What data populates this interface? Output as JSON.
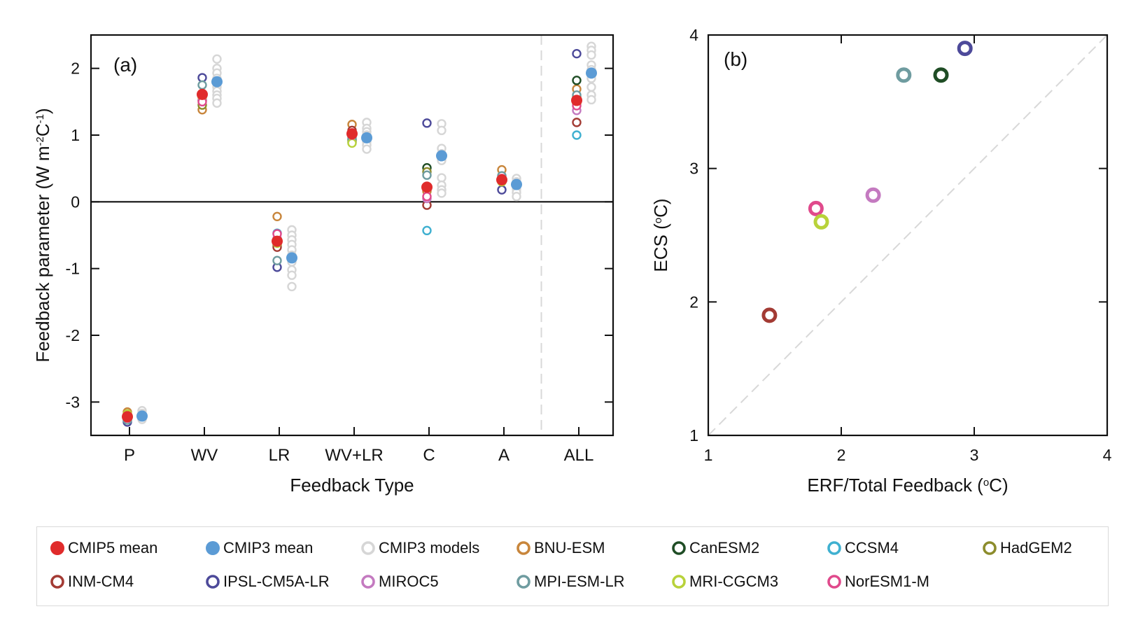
{
  "chart_data": [
    {
      "panel_label": "(a)",
      "type": "scatter",
      "xlabel": "Feedback Type",
      "ylabel": "Feedback parameter (W m⁻²C⁻¹)",
      "ylabel_parts": [
        "Feedback parameter (W m",
        "-2",
        "C",
        "-1",
        ")"
      ],
      "categories": [
        "P",
        "WV",
        "LR",
        "WV+LR",
        "C",
        "A",
        "ALL"
      ],
      "ylim": [
        -3.5,
        2.5
      ],
      "yticks": [
        -3,
        -2,
        -1,
        0,
        1,
        2
      ],
      "zero_line": true,
      "separator_between": [
        "A",
        "ALL"
      ],
      "series": [
        {
          "name": "CMIP3 models",
          "color": "#d6d6d6",
          "style": "open",
          "offset": "right",
          "values": [
            [
              -3.13,
              -3.17,
              -3.2,
              -3.23,
              -3.26
            ],
            [
              2.14,
              2.0,
              1.93,
              1.85,
              1.79,
              1.72,
              1.66,
              1.6,
              1.55,
              1.48
            ],
            [
              -0.42,
              -0.5,
              -0.57,
              -0.64,
              -0.72,
              -0.8,
              -0.9,
              -1.02,
              -1.1,
              -1.27
            ],
            [
              1.19,
              1.1,
              1.05,
              1.0,
              0.95,
              0.9,
              0.85,
              0.79
            ],
            [
              1.17,
              1.07,
              0.8,
              0.72,
              0.62,
              0.36,
              0.25,
              0.18,
              0.13
            ],
            [
              0.35,
              0.3,
              0.24,
              0.19,
              0.14,
              0.08
            ],
            [
              2.33,
              2.27,
              2.2,
              2.05,
              1.98,
              1.85,
              1.72,
              1.6,
              1.53
            ]
          ]
        },
        {
          "name": "BNU-ESM",
          "color": "#c8863c",
          "style": "open",
          "offset": "left",
          "values": [
            -3.15,
            1.38,
            -0.22,
            1.16,
            0.16,
            0.48,
            1.69
          ]
        },
        {
          "name": "CanESM2",
          "color": "#1f4d25",
          "style": "open",
          "offset": "left",
          "values": [
            -3.25,
            1.52,
            -0.6,
            0.93,
            0.51,
            0.36,
            1.82
          ]
        },
        {
          "name": "CCSM4",
          "color": "#3fb0d0",
          "style": "open",
          "offset": "left",
          "values": [
            -3.28,
            1.62,
            -0.47,
            0.89,
            -0.43,
            0.34,
            1.0
          ]
        },
        {
          "name": "HadGEM2",
          "color": "#8c8c2c",
          "style": "open",
          "offset": "left",
          "values": [
            -3.2,
            1.45,
            -0.65,
            0.9,
            0.45,
            0.33,
            1.57
          ]
        },
        {
          "name": "INM-CM4",
          "color": "#a33b34",
          "style": "open",
          "offset": "left",
          "values": [
            -3.22,
            1.6,
            -0.68,
            1.07,
            -0.05,
            0.32,
            1.19
          ]
        },
        {
          "name": "IPSL-CM5A-LR",
          "color": "#4d4a9a",
          "style": "open",
          "offset": "left",
          "values": [
            -3.3,
            1.86,
            -0.98,
            1.02,
            1.18,
            0.18,
            2.22
          ]
        },
        {
          "name": "MIROC5",
          "color": "#c47ac0",
          "style": "open",
          "offset": "left",
          "values": [
            -3.23,
            1.55,
            -0.55,
            0.97,
            0.05,
            0.37,
            1.37
          ]
        },
        {
          "name": "MPI-ESM-LR",
          "color": "#6f9ca0",
          "style": "open",
          "offset": "left",
          "values": [
            -3.27,
            1.75,
            -0.88,
            0.95,
            0.4,
            0.39,
            1.6
          ]
        },
        {
          "name": "MRI-CGCM3",
          "color": "#b8d23a",
          "style": "open",
          "offset": "left",
          "values": [
            -3.18,
            1.57,
            -0.62,
            0.88,
            0.22,
            0.3,
            1.47
          ]
        },
        {
          "name": "NorESM1-M",
          "color": "#e04a8c",
          "style": "open",
          "offset": "left",
          "values": [
            -3.24,
            1.5,
            -0.48,
            1.0,
            0.08,
            0.35,
            1.44
          ]
        },
        {
          "name": "CMIP5 mean",
          "color": "#e02b2b",
          "style": "filled",
          "offset": "left",
          "values": [
            -3.22,
            1.61,
            -0.59,
            1.02,
            0.22,
            0.33,
            1.52
          ]
        },
        {
          "name": "CMIP3 mean",
          "color": "#5b9bd5",
          "style": "filled",
          "offset": "right",
          "values": [
            -3.21,
            1.8,
            -0.84,
            0.96,
            0.69,
            0.26,
            1.93
          ]
        }
      ]
    },
    {
      "panel_label": "(b)",
      "type": "scatter",
      "xlabel": "ERF/Total Feedback (°C)",
      "xlabel_parts": [
        "ERF/Total Feedback (",
        "o",
        "C)"
      ],
      "ylabel": "ECS (°C)",
      "ylabel_parts": [
        "ECS (",
        "o",
        "C)"
      ],
      "xlim": [
        1,
        4
      ],
      "ylim": [
        1,
        4
      ],
      "xticks": [
        1,
        2,
        3,
        4
      ],
      "yticks": [
        1,
        2,
        3,
        4
      ],
      "one_to_one_line": true,
      "points": [
        {
          "name": "INM-CM4",
          "x": 1.46,
          "y": 1.9,
          "color": "#a33b34"
        },
        {
          "name": "NorESM1-M",
          "x": 1.81,
          "y": 2.7,
          "color": "#e04a8c"
        },
        {
          "name": "MRI-CGCM3",
          "x": 1.85,
          "y": 2.6,
          "color": "#b8d23a"
        },
        {
          "name": "MIROC5",
          "x": 2.24,
          "y": 2.8,
          "color": "#c47ac0"
        },
        {
          "name": "MPI-ESM-LR",
          "x": 2.47,
          "y": 3.7,
          "color": "#6f9ca0"
        },
        {
          "name": "CanESM2",
          "x": 2.75,
          "y": 3.7,
          "color": "#1f4d25"
        },
        {
          "name": "IPSL-CM5A-LR",
          "x": 2.93,
          "y": 3.9,
          "color": "#4d4a9a"
        }
      ]
    }
  ],
  "legend": {
    "items": [
      {
        "label": "CMIP5 mean",
        "color": "#e02b2b",
        "style": "filled"
      },
      {
        "label": "CMIP3 mean",
        "color": "#5b9bd5",
        "style": "filled"
      },
      {
        "label": "CMIP3 models",
        "color": "#d6d6d6",
        "style": "open"
      },
      {
        "label": "BNU-ESM",
        "color": "#c8863c",
        "style": "open"
      },
      {
        "label": "CanESM2",
        "color": "#1f4d25",
        "style": "open"
      },
      {
        "label": "CCSM4",
        "color": "#3fb0d0",
        "style": "open"
      },
      {
        "label": "HadGEM2",
        "color": "#8c8c2c",
        "style": "open"
      },
      {
        "label": "INM-CM4",
        "color": "#a33b34",
        "style": "open"
      },
      {
        "label": "IPSL-CM5A-LR",
        "color": "#4d4a9a",
        "style": "open"
      },
      {
        "label": "MIROC5",
        "color": "#c47ac0",
        "style": "open"
      },
      {
        "label": "MPI-ESM-LR",
        "color": "#6f9ca0",
        "style": "open"
      },
      {
        "label": "MRI-CGCM3",
        "color": "#b8d23a",
        "style": "open"
      },
      {
        "label": "NorESM1-M",
        "color": "#e04a8c",
        "style": "open"
      }
    ]
  }
}
